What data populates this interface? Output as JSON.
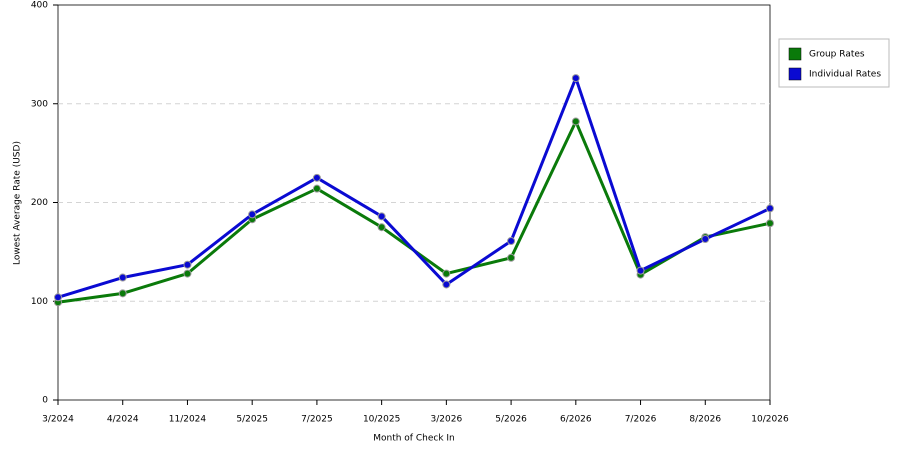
{
  "chart_data": {
    "type": "line",
    "x_label": "Month of Check In",
    "y_label": "Lowest Average Rate (USD)",
    "categories": [
      "3/2024",
      "4/2024",
      "11/2024",
      "5/2025",
      "7/2025",
      "10/2025",
      "3/2026",
      "5/2026",
      "6/2026",
      "7/2026",
      "8/2026",
      "10/2026"
    ],
    "series": [
      {
        "name": "Group Rates",
        "color": "#0a7a0a",
        "values": [
          99,
          108,
          128,
          183,
          214,
          175,
          128,
          144,
          282,
          127,
          165,
          179
        ]
      },
      {
        "name": "Individual Rates",
        "color": "#0a0ad2",
        "values": [
          104,
          124,
          137,
          188,
          225,
          186,
          117,
          161,
          326,
          131,
          163,
          194
        ]
      }
    ],
    "ylim": [
      0,
      400
    ],
    "yticks": [
      0,
      100,
      200,
      300,
      400
    ],
    "grid": true,
    "legend": "right"
  }
}
